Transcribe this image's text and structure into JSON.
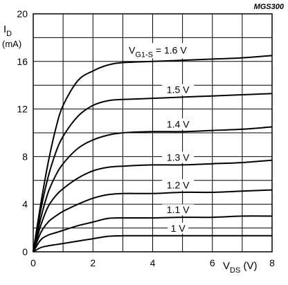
{
  "chart_data": {
    "type": "line",
    "figure_code": "MGS300",
    "ylabel": {
      "main": "I",
      "sub": "D",
      "unit": "(mA)"
    },
    "xlabel": {
      "main": "V",
      "sub": "DS",
      "unit": " (V)"
    },
    "xlim": [
      0,
      8
    ],
    "ylim": [
      0,
      20
    ],
    "xticks": [
      "0",
      "2",
      "4",
      "6",
      "8"
    ],
    "yticks": [
      "0",
      "4",
      "8",
      "12",
      "16",
      "20"
    ],
    "x_tick_values": [
      0,
      2,
      4,
      6,
      8
    ],
    "y_tick_values": [
      0,
      4,
      8,
      12,
      16,
      20
    ],
    "grid": true,
    "series": [
      {
        "name": "1.6 V",
        "label_prefix": "V",
        "label_sub": "G1-S",
        "label_suffix": " = 1.6 V",
        "points": [
          [
            0,
            0
          ],
          [
            0.25,
            4.0
          ],
          [
            0.5,
            7.5
          ],
          [
            0.75,
            10.3
          ],
          [
            1.0,
            12.3
          ],
          [
            1.5,
            14.4
          ],
          [
            2.0,
            15.2
          ],
          [
            2.5,
            15.7
          ],
          [
            3.0,
            15.9
          ],
          [
            4.0,
            16.0
          ],
          [
            5.0,
            16.1
          ],
          [
            6.0,
            16.2
          ],
          [
            7.0,
            16.3
          ],
          [
            8.0,
            16.5
          ]
        ]
      },
      {
        "name": "1.5 V",
        "label": "1.5 V",
        "points": [
          [
            0,
            0
          ],
          [
            0.25,
            3.5
          ],
          [
            0.5,
            6.3
          ],
          [
            0.75,
            8.3
          ],
          [
            1.0,
            9.7
          ],
          [
            1.5,
            11.4
          ],
          [
            2.0,
            12.3
          ],
          [
            2.5,
            12.7
          ],
          [
            3.0,
            12.8
          ],
          [
            4.0,
            12.9
          ],
          [
            5.0,
            13.0
          ],
          [
            6.0,
            13.1
          ],
          [
            7.0,
            13.2
          ],
          [
            8.0,
            13.3
          ]
        ]
      },
      {
        "name": "1.4 V",
        "label": "1.4 V",
        "points": [
          [
            0,
            0
          ],
          [
            0.25,
            2.8
          ],
          [
            0.5,
            5.0
          ],
          [
            0.75,
            6.4
          ],
          [
            1.0,
            7.4
          ],
          [
            1.5,
            8.7
          ],
          [
            2.0,
            9.4
          ],
          [
            2.5,
            9.8
          ],
          [
            3.0,
            10.0
          ],
          [
            4.0,
            10.1
          ],
          [
            5.0,
            10.1
          ],
          [
            6.0,
            10.2
          ],
          [
            7.0,
            10.3
          ],
          [
            8.0,
            10.5
          ]
        ]
      },
      {
        "name": "1.3 V",
        "label": "1.3 V",
        "points": [
          [
            0,
            0
          ],
          [
            0.25,
            2.2
          ],
          [
            0.5,
            3.8
          ],
          [
            0.75,
            4.7
          ],
          [
            1.0,
            5.3
          ],
          [
            1.5,
            6.2
          ],
          [
            2.0,
            6.8
          ],
          [
            2.5,
            7.1
          ],
          [
            3.0,
            7.2
          ],
          [
            4.0,
            7.3
          ],
          [
            5.0,
            7.3
          ],
          [
            6.0,
            7.4
          ],
          [
            7.0,
            7.5
          ],
          [
            8.0,
            7.7
          ]
        ]
      },
      {
        "name": "1.2 V",
        "label": "1.2 V",
        "points": [
          [
            0,
            0
          ],
          [
            0.25,
            1.6
          ],
          [
            0.5,
            2.5
          ],
          [
            0.75,
            3.0
          ],
          [
            1.0,
            3.4
          ],
          [
            1.5,
            4.0
          ],
          [
            2.0,
            4.5
          ],
          [
            2.5,
            4.8
          ],
          [
            3.0,
            4.9
          ],
          [
            4.0,
            4.9
          ],
          [
            5.0,
            5.0
          ],
          [
            6.0,
            5.0
          ],
          [
            7.0,
            5.1
          ],
          [
            8.0,
            5.2
          ]
        ]
      },
      {
        "name": "1.1 V",
        "label": "1.1 V",
        "points": [
          [
            0,
            0
          ],
          [
            0.25,
            1.0
          ],
          [
            0.5,
            1.4
          ],
          [
            0.75,
            1.6
          ],
          [
            1.0,
            1.8
          ],
          [
            1.5,
            2.2
          ],
          [
            2.0,
            2.5
          ],
          [
            2.5,
            2.8
          ],
          [
            3.0,
            2.85
          ],
          [
            4.0,
            2.85
          ],
          [
            5.0,
            2.9
          ],
          [
            6.0,
            2.9
          ],
          [
            7.0,
            3.0
          ],
          [
            8.0,
            3.0
          ]
        ]
      },
      {
        "name": "1 V",
        "label": "1 V",
        "points": [
          [
            0,
            0
          ],
          [
            0.25,
            0.35
          ],
          [
            0.5,
            0.5
          ],
          [
            0.75,
            0.6
          ],
          [
            1.0,
            0.7
          ],
          [
            1.5,
            0.9
          ],
          [
            2.0,
            1.1
          ],
          [
            2.5,
            1.3
          ],
          [
            3.0,
            1.35
          ],
          [
            4.0,
            1.35
          ],
          [
            5.0,
            1.35
          ],
          [
            6.0,
            1.35
          ],
          [
            7.0,
            1.35
          ],
          [
            8.0,
            1.35
          ]
        ]
      }
    ]
  }
}
